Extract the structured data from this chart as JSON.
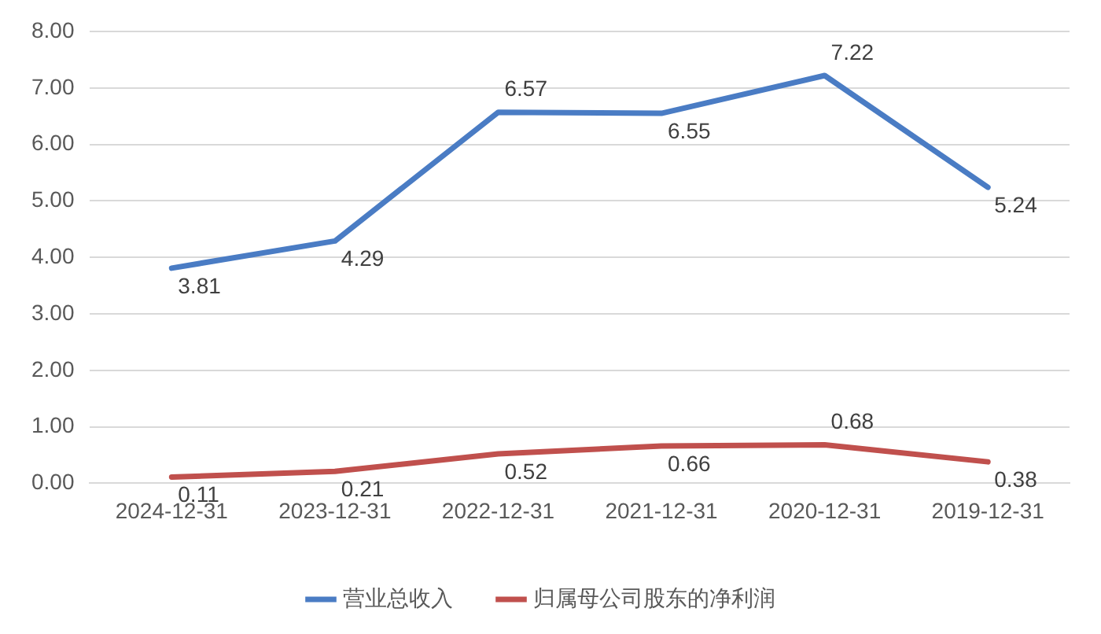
{
  "chart_data": {
    "type": "line",
    "categories": [
      "2024-12-31",
      "2023-12-31",
      "2022-12-31",
      "2021-12-31",
      "2020-12-31",
      "2019-12-31"
    ],
    "series": [
      {
        "name": "营业总收入",
        "color": "#4a7cc4",
        "values": [
          3.81,
          4.29,
          6.57,
          6.55,
          7.22,
          5.24
        ]
      },
      {
        "name": "归属母公司股东的净利润",
        "color": "#c0504d",
        "values": [
          0.11,
          0.21,
          0.52,
          0.66,
          0.68,
          0.38
        ]
      }
    ],
    "ylim": [
      0,
      8
    ],
    "yticks": [
      {
        "value": 0,
        "label": "0.00"
      },
      {
        "value": 1,
        "label": "1.00"
      },
      {
        "value": 2,
        "label": "2.00"
      },
      {
        "value": 3,
        "label": "3.00"
      },
      {
        "value": 4,
        "label": "4.00"
      },
      {
        "value": 5,
        "label": "5.00"
      },
      {
        "value": 6,
        "label": "6.00"
      },
      {
        "value": 7,
        "label": "7.00"
      },
      {
        "value": 8,
        "label": "8.00"
      }
    ],
    "grid": "y",
    "legend": "bottom",
    "marker": "none",
    "line_style": "solid",
    "data_labels": true
  }
}
